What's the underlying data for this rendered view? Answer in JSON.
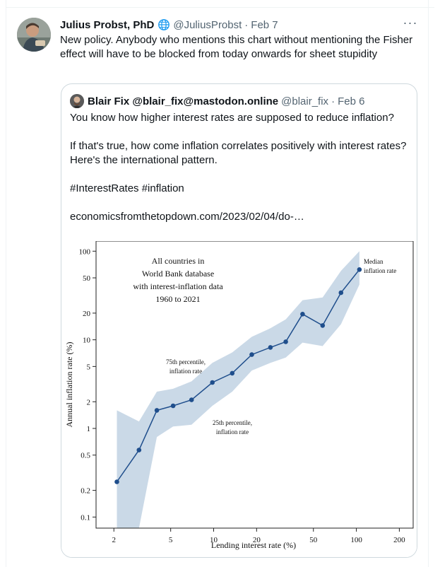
{
  "tweet": {
    "author_name": "Julius Probst, PhD",
    "handle": "@JuliusProbst",
    "separator": "·",
    "date": "Feb 7",
    "more_label": "···",
    "text": "New policy. Anybody who mentions this chart without mentioning the Fisher effect will have to be blocked from today onwards for sheet stupidity",
    "verified_icon": "globe-icon"
  },
  "quote": {
    "author_name": "Blair Fix @blair_fix@mastodon.online",
    "handle": "@blair_fix",
    "separator": "·",
    "date": "Feb 6",
    "lines": [
      "You know how higher interest rates are supposed to reduce inflation?",
      "If that's true, how come inflation correlates positively with interest rates? Here's the international pattern.",
      "#InterestRates #inflation",
      "economicsfromthetopdown.com/2023/02/04/do-…"
    ]
  },
  "chart_data": {
    "type": "line",
    "xlabel": "Lending interest rate (%)",
    "ylabel": "Annual inflation rate (%)",
    "xscale": "log",
    "yscale": "log",
    "xlim": [
      1.5,
      250
    ],
    "ylim": [
      0.075,
      130
    ],
    "x_ticks": [
      2,
      5,
      10,
      20,
      50,
      100,
      200
    ],
    "y_ticks": [
      0.1,
      0.2,
      0.5,
      1,
      2,
      5,
      10,
      20,
      50,
      100
    ],
    "annotations": {
      "title_lines": [
        "All countries in",
        "World Bank database",
        "with interest-inflation data",
        "1960 to 2021"
      ],
      "median": [
        "Median",
        "inflation rate"
      ],
      "p75": [
        "75th percentile,",
        "inflation rate"
      ],
      "p25": [
        "25th percentile,",
        "inflation rate"
      ]
    },
    "median": {
      "x": [
        2.1,
        3.0,
        4.0,
        5.2,
        7.0,
        9.8,
        13.5,
        18.5,
        25.0,
        32.0,
        42.0,
        58.0,
        78.0,
        105.0
      ],
      "y": [
        0.25,
        0.57,
        1.6,
        1.8,
        2.1,
        3.3,
        4.2,
        6.8,
        8.2,
        9.5,
        19.5,
        14.5,
        34.0,
        62.0
      ]
    },
    "p75": {
      "x": [
        2.1,
        3.0,
        4.0,
        5.2,
        7.0,
        9.8,
        13.5,
        18.5,
        25.0,
        32.0,
        42.0,
        58.0,
        78.0,
        105.0
      ],
      "y": [
        1.6,
        1.2,
        2.6,
        2.8,
        3.4,
        5.5,
        7.2,
        10.8,
        13.5,
        17.0,
        28.0,
        30.0,
        60.0,
        100.0
      ]
    },
    "p25": {
      "x": [
        2.1,
        3.0,
        4.0,
        5.2,
        7.0,
        9.8,
        13.5,
        18.5,
        25.0,
        32.0,
        42.0,
        58.0,
        78.0,
        105.0
      ],
      "y": [
        0.075,
        0.075,
        0.8,
        1.05,
        1.1,
        1.8,
        2.6,
        4.5,
        5.5,
        6.3,
        9.3,
        8.5,
        15.0,
        42.0
      ]
    },
    "line_color": "#1f4e8c",
    "band_color": "#cad9e7",
    "grid": false
  }
}
